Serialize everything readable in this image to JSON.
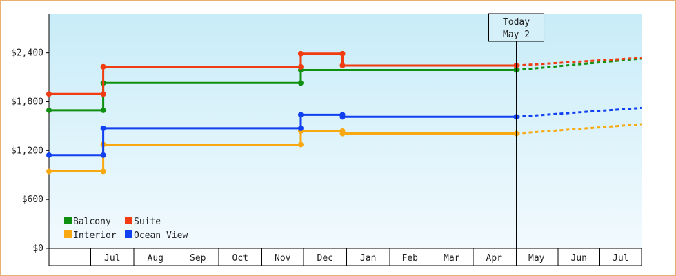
{
  "chart_data": {
    "type": "line",
    "step": true,
    "y_unit_prefix": "$",
    "ylim": [
      0,
      2880
    ],
    "yticks": [
      0,
      600,
      1200,
      1800,
      2400
    ],
    "ytick_labels": [
      "$0",
      "$600",
      "$1,200",
      "$1,800",
      "$2,400"
    ],
    "xlim": [
      "2019-06-01",
      "2020-07-31"
    ],
    "months": [
      {
        "label": "",
        "start": "2019-06-01",
        "end": "2019-07-01"
      },
      {
        "label": "Jul",
        "start": "2019-07-01",
        "end": "2019-08-01"
      },
      {
        "label": "Aug",
        "start": "2019-08-01",
        "end": "2019-09-01"
      },
      {
        "label": "Sep",
        "start": "2019-09-01",
        "end": "2019-10-01"
      },
      {
        "label": "Oct",
        "start": "2019-10-01",
        "end": "2019-11-01"
      },
      {
        "label": "Nov",
        "start": "2019-11-01",
        "end": "2019-12-01"
      },
      {
        "label": "Dec",
        "start": "2019-12-01",
        "end": "2020-01-01"
      },
      {
        "label": "Jan",
        "start": "2020-01-01",
        "end": "2020-02-01"
      },
      {
        "label": "Feb",
        "start": "2020-02-01",
        "end": "2020-03-01"
      },
      {
        "label": "Mar",
        "start": "2020-03-01",
        "end": "2020-04-01"
      },
      {
        "label": "Apr",
        "start": "2020-04-01",
        "end": "2020-05-01"
      },
      {
        "label": "May",
        "start": "2020-05-01",
        "end": "2020-06-01"
      },
      {
        "label": "Jun",
        "start": "2020-06-01",
        "end": "2020-07-01"
      },
      {
        "label": "Jul",
        "start": "2020-07-01",
        "end": "2020-08-01"
      }
    ],
    "today": {
      "date": "2020-05-02",
      "line1": "Today",
      "line2": "May 2"
    },
    "grid": false,
    "legend_position": "bottom-left",
    "series": [
      {
        "name": "Balcony",
        "color": "#109010",
        "points": [
          {
            "date": "2019-06-01",
            "value": 1695
          },
          {
            "date": "2019-07-10",
            "value": 1695
          },
          {
            "date": "2019-07-10",
            "value": 2030
          },
          {
            "date": "2019-11-29",
            "value": 2030
          },
          {
            "date": "2019-11-29",
            "value": 2190
          },
          {
            "date": "2020-05-02",
            "value": 2190
          }
        ],
        "forecast": [
          {
            "date": "2020-05-02",
            "value": 2190
          },
          {
            "date": "2020-07-31",
            "value": 2330
          }
        ]
      },
      {
        "name": "Suite",
        "color": "#f03c10",
        "points": [
          {
            "date": "2019-06-01",
            "value": 1895
          },
          {
            "date": "2019-07-10",
            "value": 1895
          },
          {
            "date": "2019-07-10",
            "value": 2230
          },
          {
            "date": "2019-11-29",
            "value": 2230
          },
          {
            "date": "2019-11-29",
            "value": 2390
          },
          {
            "date": "2019-12-29",
            "value": 2390
          },
          {
            "date": "2019-12-29",
            "value": 2245
          },
          {
            "date": "2020-05-02",
            "value": 2245
          }
        ],
        "forecast": [
          {
            "date": "2020-05-02",
            "value": 2245
          },
          {
            "date": "2020-07-31",
            "value": 2340
          }
        ]
      },
      {
        "name": "Interior",
        "color": "#f8a810",
        "points": [
          {
            "date": "2019-06-01",
            "value": 945
          },
          {
            "date": "2019-07-10",
            "value": 945
          },
          {
            "date": "2019-07-10",
            "value": 1275
          },
          {
            "date": "2019-11-29",
            "value": 1275
          },
          {
            "date": "2019-11-29",
            "value": 1440
          },
          {
            "date": "2019-12-29",
            "value": 1440
          },
          {
            "date": "2019-12-29",
            "value": 1410
          },
          {
            "date": "2020-05-02",
            "value": 1410
          }
        ],
        "forecast": [
          {
            "date": "2020-05-02",
            "value": 1410
          },
          {
            "date": "2020-07-31",
            "value": 1525
          }
        ]
      },
      {
        "name": "Ocean View",
        "color": "#1040f0",
        "points": [
          {
            "date": "2019-06-01",
            "value": 1145
          },
          {
            "date": "2019-07-10",
            "value": 1145
          },
          {
            "date": "2019-07-10",
            "value": 1475
          },
          {
            "date": "2019-11-29",
            "value": 1475
          },
          {
            "date": "2019-11-29",
            "value": 1640
          },
          {
            "date": "2019-12-29",
            "value": 1640
          },
          {
            "date": "2019-12-29",
            "value": 1615
          },
          {
            "date": "2020-05-02",
            "value": 1615
          }
        ],
        "forecast": [
          {
            "date": "2020-05-02",
            "value": 1615
          },
          {
            "date": "2020-07-31",
            "value": 1725
          }
        ]
      }
    ]
  }
}
